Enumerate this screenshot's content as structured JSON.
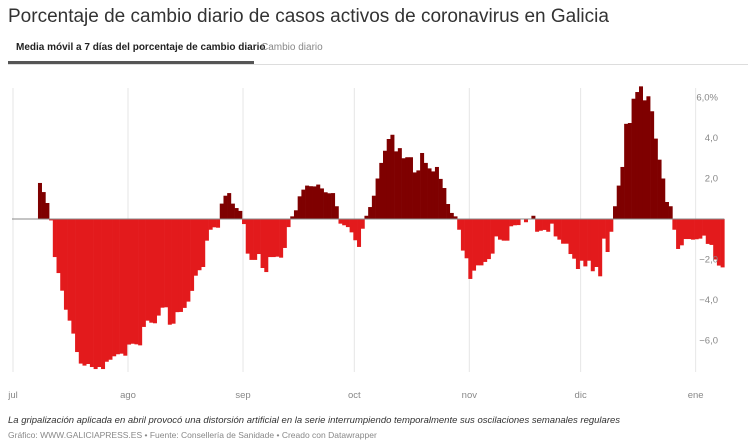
{
  "title": "Porcentaje de cambio diario de casos activos de coronavirus en Galicia",
  "tabs": [
    {
      "label": "Media móvil a 7 días del porcentaje de cambio diario",
      "active": true
    },
    {
      "label": "Cambio diario",
      "active": false
    }
  ],
  "chart_data": {
    "type": "bar",
    "title": "Porcentaje de cambio diario de casos activos de coronavirus en Galicia",
    "xlabel": "",
    "ylabel": "",
    "ylim": [
      -7.5,
      6.6
    ],
    "grid": "vertical",
    "colors": {
      "positive": "#7f0000",
      "negative": "#e31a1c",
      "zero_line": "#888888",
      "grid": "#e6e6e6"
    },
    "x_ticks": [
      "jul",
      "ago",
      "sep",
      "oct",
      "nov",
      "dic",
      "ene"
    ],
    "y_ticks": [
      {
        "value": 6,
        "label": "6,0%"
      },
      {
        "value": 4,
        "label": "4,0"
      },
      {
        "value": 2,
        "label": "2,0"
      },
      {
        "value": -2,
        "label": "−2,0"
      },
      {
        "value": -4,
        "label": "−4,0"
      },
      {
        "value": -6,
        "label": "−6,0"
      }
    ],
    "values": [
      0,
      0,
      0,
      0,
      0,
      0,
      0,
      1.78,
      1.33,
      0.79,
      -0.07,
      -1.88,
      -2.67,
      -3.54,
      -4.48,
      -5.02,
      -5.66,
      -6.57,
      -7.14,
      -7.24,
      -7.16,
      -7.31,
      -7.41,
      -7.31,
      -7.41,
      -7.05,
      -6.95,
      -6.78,
      -6.68,
      -6.65,
      -6.75,
      -6.2,
      -6.16,
      -6.19,
      -6.24,
      -5.33,
      -5.02,
      -5.12,
      -5.15,
      -4.77,
      -4.38,
      -4.36,
      -5.22,
      -5.17,
      -4.6,
      -4.59,
      -4.39,
      -4.08,
      -3.55,
      -2.8,
      -2.53,
      -2.37,
      -1.07,
      -0.53,
      -0.41,
      -0.43,
      0.76,
      1.15,
      1.28,
      0.76,
      0.54,
      0.4,
      -0.25,
      -1.71,
      -2.02,
      -2.02,
      -1.73,
      -2.42,
      -2.62,
      -1.88,
      -1.88,
      -1.86,
      -1.91,
      -1.43,
      -0.4,
      0.13,
      0.43,
      1.12,
      1.45,
      1.65,
      1.62,
      1.61,
      1.7,
      1.51,
      1.32,
      1.27,
      1.28,
      0.63,
      -0.23,
      -0.31,
      -0.4,
      -0.66,
      -1.05,
      -1.38,
      -0.48,
      0.16,
      0.59,
      1.15,
      2.0,
      2.77,
      3.37,
      3.95,
      4.16,
      3.34,
      3.5,
      3.0,
      3.05,
      3.05,
      2.3,
      2.4,
      3.26,
      2.77,
      2.5,
      2.35,
      2.57,
      1.98,
      1.53,
      0.74,
      0.3,
      0.13,
      -0.53,
      -1.56,
      -1.94,
      -2.96,
      -2.55,
      -2.29,
      -2.29,
      -2.12,
      -1.98,
      -1.71,
      -0.86,
      -1.02,
      -1.07,
      -1.07,
      -0.36,
      -0.31,
      -0.3,
      0,
      -0.16,
      0,
      0.16,
      -0.63,
      -0.58,
      -0.54,
      -0.63,
      -0.23,
      -0.86,
      -1.02,
      -1.22,
      -1.22,
      -1.73,
      -1.96,
      -2.47,
      -2.06,
      -2.34,
      -2.06,
      -2.58,
      -2.37,
      -2.83,
      -0.97,
      -1.63,
      -0.63,
      0.63,
      1.65,
      2.57,
      4.7,
      4.74,
      5.94,
      6.27,
      6.55,
      5.86,
      6.06,
      5.32,
      3.97,
      2.93,
      2.0,
      0.84,
      0.63,
      -0.53,
      -1.48,
      -1.3,
      -0.99,
      -0.99,
      -1.02,
      -1.0,
      -0.97,
      -0.82,
      -1.23,
      -1.28,
      -2.0,
      -2.3,
      -2.39
    ]
  },
  "notes": "La gripalización aplicada en abril provocó una distorsión artificial en la serie interrumpiendo temporalmente sus oscilaciones semanales regulares",
  "credit": "Gráfico: WWW.GALICIAPRESS.ES • Fuente: Consellería de Sanidade • Creado con Datawrapper"
}
